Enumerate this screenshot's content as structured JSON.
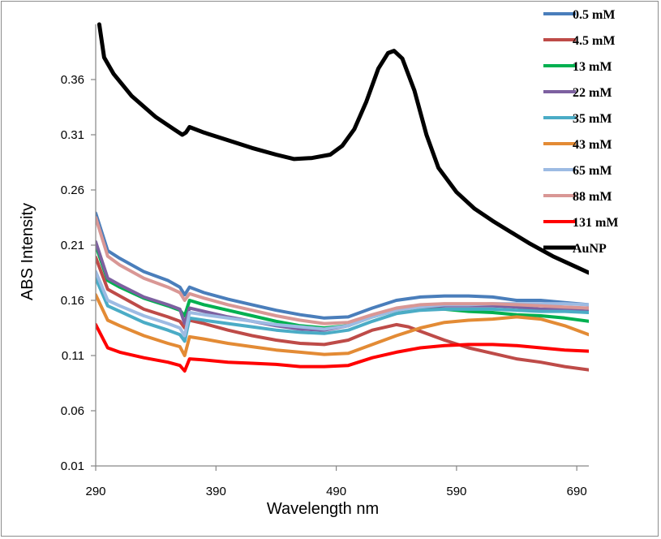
{
  "chart_data": {
    "type": "line",
    "title": "",
    "xlabel": "Wavelength nm",
    "ylabel": "ABS Intensity",
    "xlim": [
      290,
      700
    ],
    "ylim": [
      0.01,
      0.41
    ],
    "xticks": [
      290,
      390,
      490,
      590,
      690
    ],
    "yticks": [
      0.01,
      0.06,
      0.11,
      0.16,
      0.21,
      0.26,
      0.31,
      0.36
    ],
    "xtick_labels": [
      "290",
      "390",
      "490",
      "590",
      "690"
    ],
    "ytick_labels": [
      "0.01",
      "0.06",
      "0.11",
      "0.16",
      "0.21",
      "0.26",
      "0.31",
      "0.36"
    ],
    "grid": false,
    "legend_position": "top-right",
    "series": [
      {
        "name": "0.5 mM",
        "color": "#4a7ebb",
        "width": 4,
        "points": [
          [
            290,
            0.239
          ],
          [
            300,
            0.205
          ],
          [
            310,
            0.198
          ],
          [
            330,
            0.186
          ],
          [
            350,
            0.178
          ],
          [
            360,
            0.172
          ],
          [
            364,
            0.165
          ],
          [
            368,
            0.172
          ],
          [
            380,
            0.167
          ],
          [
            400,
            0.161
          ],
          [
            420,
            0.156
          ],
          [
            440,
            0.151
          ],
          [
            460,
            0.147
          ],
          [
            480,
            0.144
          ],
          [
            500,
            0.145
          ],
          [
            520,
            0.153
          ],
          [
            540,
            0.16
          ],
          [
            560,
            0.163
          ],
          [
            580,
            0.164
          ],
          [
            600,
            0.164
          ],
          [
            620,
            0.163
          ],
          [
            640,
            0.16
          ],
          [
            660,
            0.16
          ],
          [
            680,
            0.158
          ],
          [
            700,
            0.156
          ]
        ]
      },
      {
        "name": "4.5 mM",
        "color": "#be4b48",
        "width": 4,
        "points": [
          [
            290,
            0.199
          ],
          [
            300,
            0.17
          ],
          [
            310,
            0.164
          ],
          [
            330,
            0.152
          ],
          [
            350,
            0.145
          ],
          [
            360,
            0.141
          ],
          [
            364,
            0.135
          ],
          [
            368,
            0.142
          ],
          [
            380,
            0.139
          ],
          [
            400,
            0.133
          ],
          [
            420,
            0.128
          ],
          [
            440,
            0.124
          ],
          [
            460,
            0.121
          ],
          [
            480,
            0.12
          ],
          [
            500,
            0.124
          ],
          [
            520,
            0.133
          ],
          [
            540,
            0.138
          ],
          [
            550,
            0.136
          ],
          [
            560,
            0.132
          ],
          [
            580,
            0.124
          ],
          [
            600,
            0.117
          ],
          [
            620,
            0.112
          ],
          [
            640,
            0.107
          ],
          [
            660,
            0.104
          ],
          [
            680,
            0.1
          ],
          [
            700,
            0.097
          ]
        ]
      },
      {
        "name": "13 mM",
        "color": "#00b050",
        "width": 4,
        "points": [
          [
            290,
            0.21
          ],
          [
            300,
            0.178
          ],
          [
            310,
            0.172
          ],
          [
            330,
            0.162
          ],
          [
            350,
            0.155
          ],
          [
            360,
            0.151
          ],
          [
            364,
            0.146
          ],
          [
            368,
            0.16
          ],
          [
            380,
            0.156
          ],
          [
            400,
            0.151
          ],
          [
            420,
            0.146
          ],
          [
            440,
            0.141
          ],
          [
            460,
            0.137
          ],
          [
            480,
            0.135
          ],
          [
            500,
            0.137
          ],
          [
            520,
            0.145
          ],
          [
            540,
            0.151
          ],
          [
            560,
            0.153
          ],
          [
            580,
            0.152
          ],
          [
            600,
            0.15
          ],
          [
            620,
            0.149
          ],
          [
            640,
            0.147
          ],
          [
            660,
            0.146
          ],
          [
            680,
            0.144
          ],
          [
            700,
            0.141
          ]
        ]
      },
      {
        "name": "22 mM",
        "color": "#7d60a0",
        "width": 4,
        "points": [
          [
            290,
            0.213
          ],
          [
            300,
            0.18
          ],
          [
            310,
            0.174
          ],
          [
            330,
            0.163
          ],
          [
            350,
            0.156
          ],
          [
            360,
            0.152
          ],
          [
            364,
            0.139
          ],
          [
            368,
            0.153
          ],
          [
            380,
            0.15
          ],
          [
            400,
            0.145
          ],
          [
            420,
            0.141
          ],
          [
            440,
            0.137
          ],
          [
            460,
            0.134
          ],
          [
            480,
            0.133
          ],
          [
            500,
            0.137
          ],
          [
            520,
            0.146
          ],
          [
            540,
            0.152
          ],
          [
            560,
            0.154
          ],
          [
            580,
            0.155
          ],
          [
            600,
            0.155
          ],
          [
            620,
            0.155
          ],
          [
            640,
            0.154
          ],
          [
            660,
            0.152
          ],
          [
            680,
            0.152
          ],
          [
            700,
            0.15
          ]
        ]
      },
      {
        "name": "35 mM",
        "color": "#4bacc6",
        "width": 4,
        "points": [
          [
            290,
            0.18
          ],
          [
            300,
            0.155
          ],
          [
            310,
            0.15
          ],
          [
            330,
            0.14
          ],
          [
            350,
            0.133
          ],
          [
            360,
            0.129
          ],
          [
            364,
            0.123
          ],
          [
            368,
            0.144
          ],
          [
            380,
            0.142
          ],
          [
            400,
            0.139
          ],
          [
            420,
            0.136
          ],
          [
            440,
            0.133
          ],
          [
            460,
            0.131
          ],
          [
            480,
            0.13
          ],
          [
            500,
            0.133
          ],
          [
            520,
            0.141
          ],
          [
            540,
            0.148
          ],
          [
            560,
            0.151
          ],
          [
            580,
            0.152
          ],
          [
            600,
            0.152
          ],
          [
            620,
            0.152
          ],
          [
            640,
            0.151
          ],
          [
            660,
            0.15
          ],
          [
            680,
            0.15
          ],
          [
            700,
            0.149
          ]
        ]
      },
      {
        "name": "43 mM",
        "color": "#e38b35",
        "width": 4,
        "points": [
          [
            290,
            0.165
          ],
          [
            300,
            0.142
          ],
          [
            310,
            0.137
          ],
          [
            330,
            0.128
          ],
          [
            350,
            0.121
          ],
          [
            360,
            0.118
          ],
          [
            364,
            0.11
          ],
          [
            368,
            0.127
          ],
          [
            380,
            0.125
          ],
          [
            400,
            0.121
          ],
          [
            420,
            0.118
          ],
          [
            440,
            0.115
          ],
          [
            460,
            0.113
          ],
          [
            480,
            0.111
          ],
          [
            500,
            0.112
          ],
          [
            520,
            0.12
          ],
          [
            540,
            0.128
          ],
          [
            560,
            0.135
          ],
          [
            580,
            0.14
          ],
          [
            600,
            0.142
          ],
          [
            620,
            0.143
          ],
          [
            640,
            0.145
          ],
          [
            660,
            0.143
          ],
          [
            680,
            0.137
          ],
          [
            700,
            0.129
          ]
        ]
      },
      {
        "name": "65 mM",
        "color": "#9dbbe3",
        "width": 4,
        "points": [
          [
            290,
            0.186
          ],
          [
            300,
            0.16
          ],
          [
            310,
            0.155
          ],
          [
            330,
            0.146
          ],
          [
            350,
            0.139
          ],
          [
            360,
            0.135
          ],
          [
            364,
            0.128
          ],
          [
            368,
            0.149
          ],
          [
            380,
            0.147
          ],
          [
            400,
            0.144
          ],
          [
            420,
            0.141
          ],
          [
            440,
            0.138
          ],
          [
            460,
            0.136
          ],
          [
            480,
            0.134
          ],
          [
            500,
            0.137
          ],
          [
            520,
            0.145
          ],
          [
            540,
            0.151
          ],
          [
            560,
            0.154
          ],
          [
            580,
            0.156
          ],
          [
            600,
            0.156
          ],
          [
            620,
            0.157
          ],
          [
            640,
            0.157
          ],
          [
            660,
            0.157
          ],
          [
            680,
            0.157
          ],
          [
            700,
            0.156
          ]
        ]
      },
      {
        "name": "88 mM",
        "color": "#d99795",
        "width": 4,
        "points": [
          [
            290,
            0.235
          ],
          [
            300,
            0.2
          ],
          [
            310,
            0.192
          ],
          [
            330,
            0.18
          ],
          [
            350,
            0.172
          ],
          [
            360,
            0.167
          ],
          [
            364,
            0.16
          ],
          [
            368,
            0.166
          ],
          [
            380,
            0.162
          ],
          [
            400,
            0.156
          ],
          [
            420,
            0.151
          ],
          [
            440,
            0.146
          ],
          [
            460,
            0.142
          ],
          [
            480,
            0.139
          ],
          [
            500,
            0.14
          ],
          [
            520,
            0.147
          ],
          [
            540,
            0.153
          ],
          [
            560,
            0.156
          ],
          [
            580,
            0.157
          ],
          [
            600,
            0.157
          ],
          [
            620,
            0.157
          ],
          [
            640,
            0.156
          ],
          [
            660,
            0.155
          ],
          [
            680,
            0.154
          ],
          [
            700,
            0.153
          ]
        ]
      },
      {
        "name": "131 mM",
        "color": "#ff0000",
        "width": 4,
        "points": [
          [
            290,
            0.138
          ],
          [
            300,
            0.117
          ],
          [
            310,
            0.113
          ],
          [
            330,
            0.108
          ],
          [
            350,
            0.104
          ],
          [
            360,
            0.101
          ],
          [
            364,
            0.096
          ],
          [
            368,
            0.107
          ],
          [
            380,
            0.106
          ],
          [
            400,
            0.104
          ],
          [
            420,
            0.103
          ],
          [
            440,
            0.102
          ],
          [
            460,
            0.1
          ],
          [
            480,
            0.1
          ],
          [
            500,
            0.101
          ],
          [
            520,
            0.108
          ],
          [
            540,
            0.113
          ],
          [
            560,
            0.117
          ],
          [
            580,
            0.119
          ],
          [
            600,
            0.12
          ],
          [
            620,
            0.12
          ],
          [
            640,
            0.119
          ],
          [
            660,
            0.117
          ],
          [
            680,
            0.115
          ],
          [
            700,
            0.114
          ]
        ]
      },
      {
        "name": "AuNP",
        "color": "#000000",
        "width": 5,
        "points": [
          [
            293,
            0.41
          ],
          [
            297,
            0.38
          ],
          [
            305,
            0.365
          ],
          [
            320,
            0.345
          ],
          [
            340,
            0.326
          ],
          [
            355,
            0.315
          ],
          [
            362,
            0.31
          ],
          [
            365,
            0.312
          ],
          [
            368,
            0.317
          ],
          [
            380,
            0.312
          ],
          [
            400,
            0.305
          ],
          [
            420,
            0.298
          ],
          [
            440,
            0.292
          ],
          [
            455,
            0.288
          ],
          [
            470,
            0.289
          ],
          [
            485,
            0.292
          ],
          [
            495,
            0.3
          ],
          [
            505,
            0.315
          ],
          [
            515,
            0.34
          ],
          [
            525,
            0.37
          ],
          [
            533,
            0.384
          ],
          [
            538,
            0.386
          ],
          [
            545,
            0.379
          ],
          [
            555,
            0.35
          ],
          [
            565,
            0.31
          ],
          [
            575,
            0.28
          ],
          [
            590,
            0.258
          ],
          [
            605,
            0.243
          ],
          [
            620,
            0.232
          ],
          [
            635,
            0.222
          ],
          [
            650,
            0.212
          ],
          [
            670,
            0.2
          ],
          [
            690,
            0.19
          ],
          [
            700,
            0.185
          ]
        ]
      }
    ]
  }
}
